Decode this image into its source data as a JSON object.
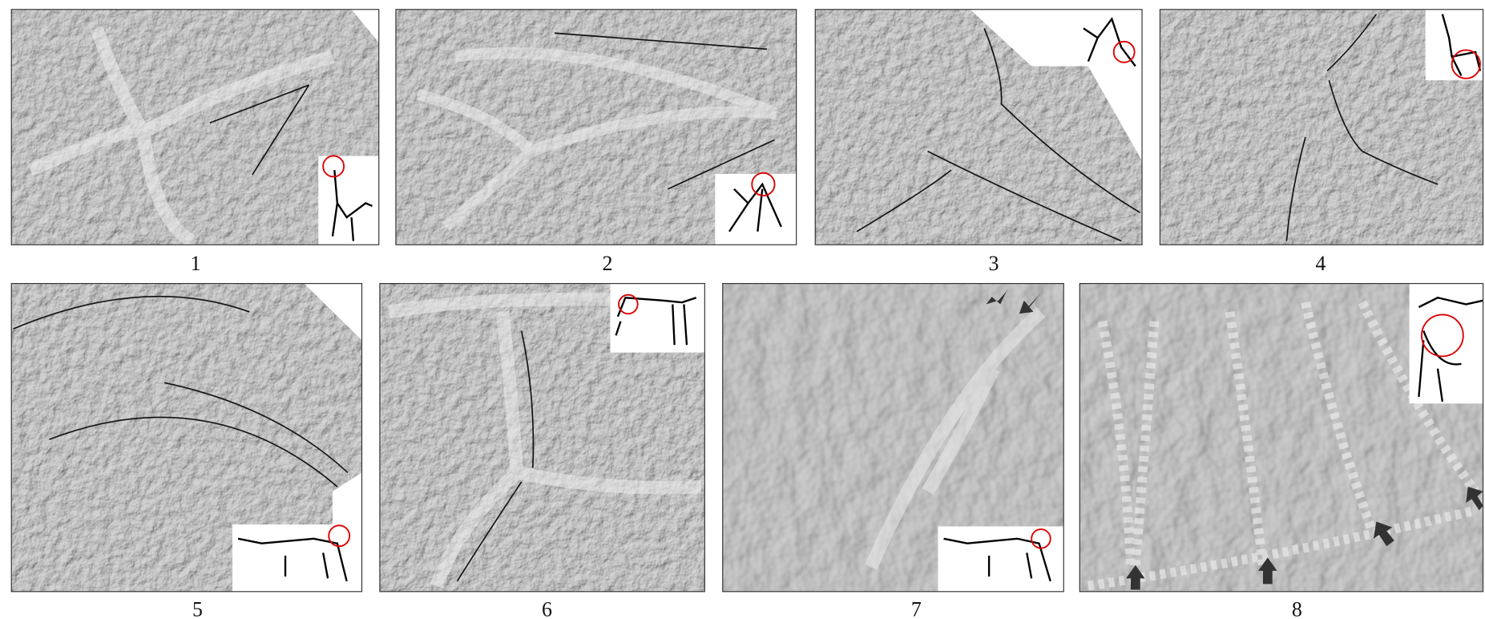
{
  "panels": [
    {
      "label": "1"
    },
    {
      "label": "2"
    },
    {
      "label": "3"
    },
    {
      "label": "4"
    },
    {
      "label": "5"
    },
    {
      "label": "6"
    },
    {
      "label": "7"
    },
    {
      "label": "8"
    }
  ]
}
